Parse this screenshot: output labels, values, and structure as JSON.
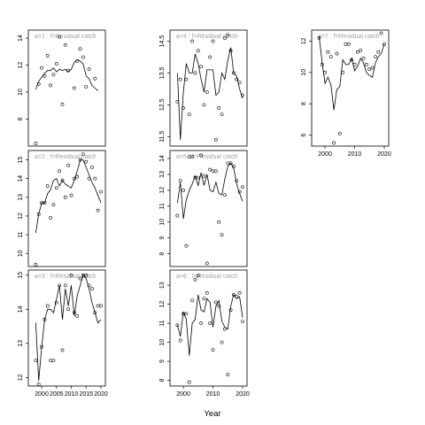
{
  "figure": {
    "xlabel": "Year"
  },
  "chart_data": [
    {
      "type": "scatter",
      "panel": "a=1",
      "title": "a=1 : f=Residual catch",
      "xlim": [
        1995.5,
        2021.5
      ],
      "ylim": [
        6.0,
        14.6
      ],
      "yticks": [
        8,
        10,
        12,
        14
      ],
      "xticks": [],
      "points_x": [
        1998,
        1999,
        2000,
        2001,
        2002,
        2003,
        2004,
        2005,
        2006,
        2007,
        2008,
        2009,
        2011,
        2012,
        2013,
        2014,
        2015,
        2016,
        2018
      ],
      "points_y": [
        6.2,
        10.6,
        11.8,
        11.2,
        12.7,
        10.5,
        11.3,
        12.1,
        14.1,
        9.1,
        13.5,
        11.6,
        10.3,
        12.3,
        13.2,
        12.6,
        10.4,
        11.7,
        11.0
      ],
      "line_x": [
        1998,
        1999,
        2000,
        2001,
        2002,
        2003,
        2004,
        2005,
        2006,
        2007,
        2008,
        2009,
        2010,
        2011,
        2012,
        2013,
        2014,
        2015,
        2016,
        2017,
        2018,
        2019
      ],
      "line_y": [
        10.2,
        10.8,
        11.1,
        11.4,
        11.6,
        11.6,
        11.8,
        11.5,
        11.7,
        11.6,
        11.7,
        11.5,
        11.7,
        12.2,
        12.4,
        12.3,
        12.1,
        11.2,
        11.0,
        10.5,
        10.3,
        10.1
      ]
    },
    {
      "type": "scatter",
      "panel": "a=2",
      "title": "a=2 : f=Residual catch",
      "xlim": [
        1995.5,
        2021.5
      ],
      "ylim": [
        9.3,
        15.5
      ],
      "yticks": [
        10,
        11,
        12,
        13,
        14,
        15
      ],
      "xticks": [],
      "points_x": [
        1998,
        1999,
        2000,
        2001,
        2002,
        2003,
        2004,
        2005,
        2006,
        2007,
        2008,
        2009,
        2010,
        2011,
        2012,
        2013,
        2014,
        2015,
        2016,
        2017,
        2018,
        2019,
        2020
      ],
      "points_y": [
        9.4,
        12.1,
        12.7,
        12.7,
        13.6,
        11.9,
        12.6,
        13.5,
        14.4,
        13.9,
        13.0,
        14.7,
        13.1,
        14.0,
        14.1,
        15.0,
        15.3,
        14.9,
        14.0,
        14.6,
        14.0,
        12.3,
        13.3
      ],
      "line_x": [
        1998,
        1999,
        2000,
        2001,
        2002,
        2003,
        2004,
        2005,
        2006,
        2007,
        2008,
        2009,
        2010,
        2011,
        2012,
        2013,
        2014,
        2015,
        2016,
        2017,
        2018,
        2019,
        2020
      ],
      "line_y": [
        11.1,
        12.1,
        12.7,
        12.7,
        13.2,
        13.4,
        13.9,
        14.0,
        13.6,
        13.9,
        13.7,
        13.6,
        13.5,
        13.9,
        14.4,
        15.0,
        15.0,
        14.6,
        14.2,
        13.8,
        13.5,
        13.1,
        12.7
      ]
    },
    {
      "type": "scatter",
      "panel": "a=3",
      "title": "a=3 : f=Residual catch",
      "xlim": [
        1995.5,
        2021.5
      ],
      "ylim": [
        11.75,
        15.15
      ],
      "yticks": [
        12.0,
        13.0,
        14.0,
        15.0
      ],
      "xticks": [
        2000,
        2005,
        2010,
        2015,
        2020
      ],
      "points_x": [
        1998,
        1999,
        2000,
        2001,
        2002,
        2003,
        2004,
        2005,
        2006,
        2007,
        2008,
        2009,
        2010,
        2011,
        2012,
        2013,
        2014,
        2015,
        2016,
        2017,
        2018,
        2019,
        2020
      ],
      "points_y": [
        12.5,
        11.8,
        12.9,
        13.7,
        14.1,
        12.5,
        12.5,
        14.2,
        14.7,
        12.8,
        14.7,
        14.0,
        15.0,
        13.9,
        13.8,
        14.9,
        15.0,
        15.0,
        14.7,
        14.6,
        13.9,
        14.1,
        14.1
      ],
      "line_x": [
        1998,
        1999,
        2000,
        2001,
        2002,
        2003,
        2004,
        2005,
        2006,
        2007,
        2008,
        2009,
        2010,
        2011,
        2012,
        2013,
        2014,
        2015,
        2016,
        2017,
        2018,
        2019,
        2020
      ],
      "line_y": [
        13.6,
        11.9,
        12.9,
        13.7,
        14.0,
        14.0,
        13.9,
        14.3,
        14.7,
        13.7,
        14.6,
        14.1,
        14.7,
        13.8,
        14.4,
        14.7,
        15.0,
        14.9,
        14.6,
        14.2,
        13.9,
        13.6,
        13.7
      ]
    },
    {
      "type": "scatter",
      "panel": "a=4",
      "title": "a=4 : f=Residual catch",
      "xlim": [
        1995.5,
        2021.5
      ],
      "ylim": [
        11.2,
        14.85
      ],
      "yticks": [
        11.5,
        12.5,
        13.5,
        14.5
      ],
      "xticks": [],
      "points_x": [
        1998,
        1999,
        2000,
        2001,
        2002,
        2003,
        2004,
        2005,
        2006,
        2007,
        2008,
        2009,
        2010,
        2011,
        2012,
        2013,
        2014,
        2015,
        2016,
        2017,
        2018,
        2019,
        2020
      ],
      "points_y": [
        12.6,
        13.3,
        12.4,
        13.3,
        12.2,
        14.5,
        13.5,
        14.2,
        13.7,
        12.5,
        12.9,
        14.0,
        14.5,
        11.4,
        12.4,
        12.2,
        14.6,
        14.7,
        14.2,
        13.5,
        13.3,
        13.2,
        12.8
      ],
      "line_x": [
        1998,
        1999,
        2000,
        2001,
        2002,
        2003,
        2004,
        2005,
        2006,
        2007,
        2008,
        2009,
        2010,
        2011,
        2012,
        2013,
        2014,
        2015,
        2016,
        2017,
        2018,
        2019,
        2020
      ],
      "line_y": [
        13.5,
        11.4,
        12.9,
        13.8,
        13.5,
        13.5,
        14.1,
        13.8,
        13.3,
        12.9,
        13.6,
        13.6,
        13.6,
        12.8,
        12.9,
        13.5,
        13.3,
        13.9,
        14.3,
        13.5,
        13.4,
        13.0,
        12.7
      ]
    },
    {
      "type": "scatter",
      "panel": "a=5",
      "title": "a=5 : f=Residual catch",
      "xlim": [
        1995.5,
        2021.5
      ],
      "ylim": [
        7.2,
        14.5
      ],
      "yticks": [
        8,
        9,
        10,
        11,
        12,
        13,
        14
      ],
      "xticks": [],
      "points_x": [
        1998,
        1999,
        2000,
        2001,
        2002,
        2003,
        2004,
        2005,
        2006,
        2007,
        2008,
        2009,
        2010,
        2011,
        2012,
        2013,
        2014,
        2015,
        2016,
        2017,
        2018,
        2019,
        2020
      ],
      "points_y": [
        10.4,
        12.6,
        12.0,
        8.5,
        14.1,
        14.1,
        12.8,
        12.8,
        14.2,
        12.9,
        7.4,
        13.3,
        13.2,
        13.2,
        10.0,
        9.2,
        11.7,
        13.7,
        13.7,
        13.5,
        12.6,
        11.9,
        12.2
      ],
      "line_x": [
        1998,
        1999,
        2000,
        2001,
        2002,
        2003,
        2004,
        2005,
        2006,
        2007,
        2008,
        2009,
        2010,
        2011,
        2012,
        2013,
        2014,
        2015,
        2016,
        2017,
        2018,
        2019,
        2020
      ],
      "line_y": [
        11.2,
        12.5,
        10.2,
        11.4,
        12.0,
        12.4,
        12.9,
        12.3,
        13.1,
        12.3,
        13.0,
        12.0,
        11.9,
        12.5,
        11.8,
        11.7,
        12.7,
        13.5,
        13.7,
        13.4,
        12.4,
        11.8,
        11.3
      ]
    },
    {
      "type": "scatter",
      "panel": "a=6",
      "title": "a=6 : f=Residual catch",
      "xlim": [
        1995.5,
        2021.5
      ],
      "ylim": [
        7.7,
        13.8
      ],
      "yticks": [
        8,
        9,
        10,
        11,
        12,
        13
      ],
      "xticks": [
        2000,
        2010,
        2020
      ],
      "points_x": [
        1998,
        1999,
        2000,
        2001,
        2002,
        2003,
        2004,
        2005,
        2006,
        2007,
        2008,
        2009,
        2010,
        2011,
        2012,
        2013,
        2014,
        2015,
        2016,
        2017,
        2018,
        2019,
        2020
      ],
      "points_y": [
        10.9,
        10.1,
        11.5,
        11.5,
        7.9,
        12.2,
        13.3,
        13.5,
        11.0,
        12.3,
        12.6,
        11.0,
        9.6,
        12.1,
        11.9,
        10.0,
        10.7,
        8.3,
        11.7,
        12.5,
        12.4,
        12.6,
        11.1
      ],
      "line_x": [
        1998,
        1999,
        2000,
        2001,
        2002,
        2003,
        2004,
        2005,
        2006,
        2007,
        2008,
        2009,
        2010,
        2011,
        2012,
        2013,
        2014,
        2015,
        2016,
        2017,
        2018,
        2019,
        2020
      ],
      "line_y": [
        10.9,
        10.3,
        11.6,
        11.2,
        9.3,
        11.0,
        11.2,
        12.5,
        11.7,
        11.6,
        12.3,
        12.1,
        10.8,
        11.9,
        12.2,
        11.1,
        10.8,
        10.7,
        11.9,
        12.5,
        12.3,
        12.4,
        11.3
      ]
    },
    {
      "type": "scatter",
      "panel": "a=7",
      "title": "a=7 : f=Residual catch",
      "xlim": [
        1995.5,
        2021.5
      ],
      "ylim": [
        5.3,
        12.7
      ],
      "yticks": [
        6,
        8,
        10,
        12
      ],
      "xticks": [
        2000,
        2010,
        2020
      ],
      "points_x": [
        1998,
        1999,
        2000,
        2001,
        2002,
        2003,
        2004,
        2005,
        2006,
        2007,
        2008,
        2009,
        2010,
        2011,
        2012,
        2013,
        2014,
        2015,
        2016,
        2017,
        2018,
        2019,
        2020
      ],
      "points_y": [
        12.2,
        10.5,
        10.0,
        11.3,
        11.0,
        5.5,
        11.2,
        6.1,
        10.0,
        11.8,
        11.8,
        10.8,
        10.5,
        11.3,
        11.4,
        10.9,
        10.5,
        10.2,
        10.3,
        11.0,
        11.3,
        12.5,
        11.8
      ],
      "line_x": [
        1998,
        1999,
        2000,
        2001,
        2002,
        2003,
        2004,
        2005,
        2006,
        2007,
        2008,
        2009,
        2010,
        2011,
        2012,
        2013,
        2014,
        2015,
        2016,
        2017,
        2018,
        2019,
        2020
      ],
      "line_y": [
        12.3,
        10.7,
        9.3,
        9.7,
        9.2,
        7.6,
        8.9,
        9.1,
        10.8,
        10.5,
        10.5,
        10.9,
        10.1,
        10.4,
        10.9,
        10.6,
        10.0,
        9.8,
        9.7,
        10.6,
        11.0,
        11.2,
        11.8
      ]
    }
  ]
}
